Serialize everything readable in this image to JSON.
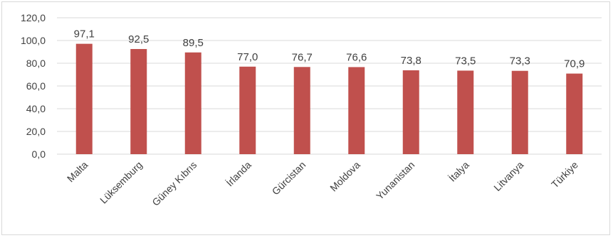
{
  "chart_data": {
    "type": "bar",
    "title": "",
    "xlabel": "",
    "ylabel": "",
    "categories": [
      "Malta",
      "Lüksemburg",
      "Güney Kıbrıs",
      "İrlanda",
      "Gürcistan",
      "Moldova",
      "Yunanistan",
      "İtalya",
      "Litvanya",
      "Türkiye"
    ],
    "values": [
      97.1,
      92.5,
      89.5,
      77.0,
      76.7,
      76.6,
      73.8,
      73.5,
      73.3,
      70.9
    ],
    "value_labels": [
      "97,1",
      "92,5",
      "89,5",
      "77,0",
      "76,7",
      "76,6",
      "73,8",
      "73,5",
      "73,3",
      "70,9"
    ],
    "yticks": [
      0,
      20,
      40,
      60,
      80,
      100,
      120
    ],
    "ytick_labels": [
      "0,0",
      "20,0",
      "40,0",
      "60,0",
      "80,0",
      "100,0",
      "120,0"
    ],
    "ylim": [
      0,
      120
    ],
    "grid": true,
    "legend": "none",
    "bar_color": "#c0504d",
    "grid_color": "#d9d9d9"
  }
}
